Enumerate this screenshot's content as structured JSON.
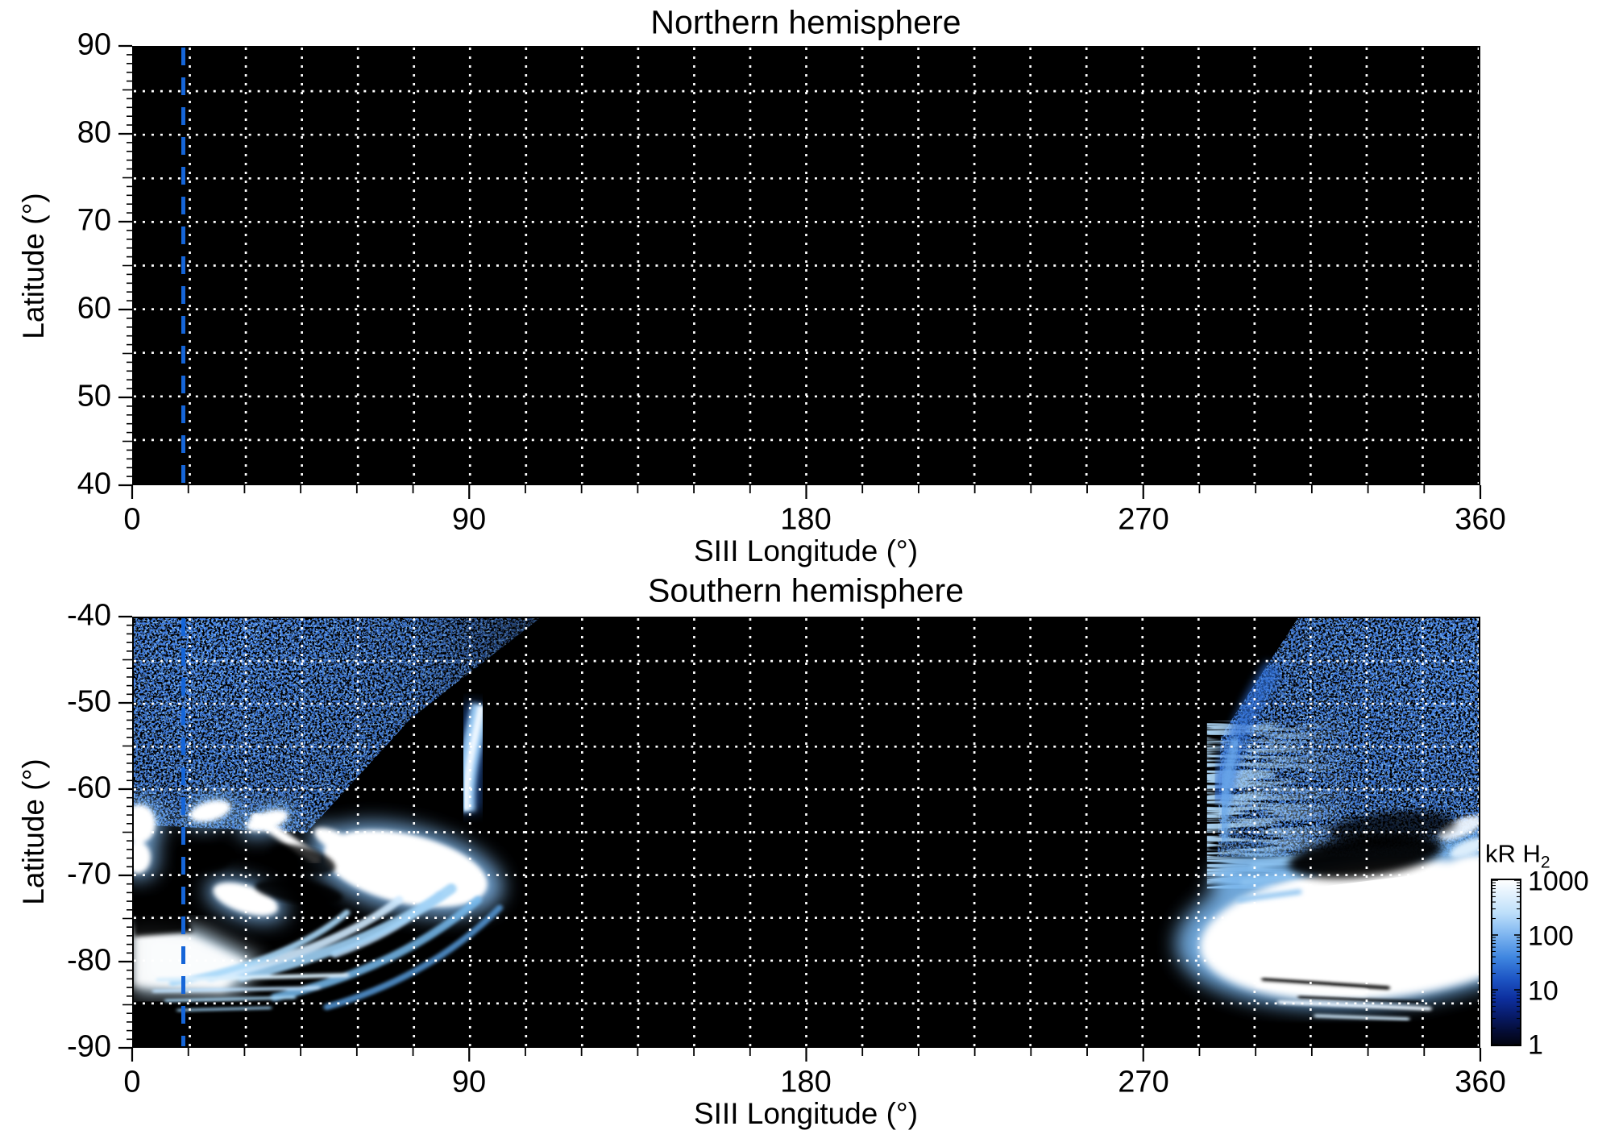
{
  "figure": {
    "north": {
      "title": "Northern hemisphere",
      "xlabel": "SIII Longitude (°)",
      "ylabel": "Latitude (°)",
      "xticks": [
        "0",
        "90",
        "180",
        "270",
        "360"
      ],
      "yticks": [
        "90",
        "80",
        "70",
        "60",
        "50",
        "40"
      ]
    },
    "south": {
      "title": "Southern hemisphere",
      "xlabel": "SIII Longitude (°)",
      "ylabel": "Latitude (°)",
      "xticks": [
        "0",
        "90",
        "180",
        "270",
        "360"
      ],
      "yticks": [
        "-40",
        "-50",
        "-60",
        "-70",
        "-80",
        "-90"
      ]
    },
    "colorbar": {
      "title_main": "kR H",
      "title_sub": "2",
      "ticks": [
        "1000",
        "100",
        "10",
        "1"
      ]
    }
  },
  "chart_data": [
    {
      "type": "heatmap",
      "title": "Northern hemisphere",
      "xlabel": "SIII Longitude (°)",
      "ylabel": "Latitude (°)",
      "xlim": [
        0,
        360
      ],
      "ylim": [
        40,
        90
      ],
      "xticks": [
        0,
        90,
        180,
        270,
        360
      ],
      "yticks": [
        40,
        50,
        60,
        70,
        80,
        90
      ],
      "grid": {
        "x_step_deg": 15,
        "y_step_deg": 5,
        "style": "white dotted"
      },
      "reference_line": {
        "orientation": "vertical",
        "longitude_deg": 13,
        "style": "blue dashed",
        "color": "#1565d8"
      },
      "content": "no emission detected - entire map at background level (black, < 1 kR)"
    },
    {
      "type": "heatmap",
      "title": "Southern hemisphere",
      "xlabel": "SIII Longitude (°)",
      "ylabel": "Latitude (°)",
      "xlim": [
        0,
        360
      ],
      "ylim": [
        -90,
        -40
      ],
      "xticks": [
        0,
        90,
        180,
        270,
        360
      ],
      "yticks": [
        -90,
        -80,
        -70,
        -60,
        -50,
        -40
      ],
      "grid": {
        "x_step_deg": 15,
        "y_step_deg": 5,
        "style": "white dotted"
      },
      "reference_line": {
        "orientation": "vertical",
        "longitude_deg": 13,
        "style": "blue dashed",
        "color": "#1565d8"
      },
      "features": [
        {
          "name": "faint speckled emission field",
          "lon_range": [
            0,
            105
          ],
          "lat_range": [
            -63,
            -40
          ],
          "intensity_kR": "1-30"
        },
        {
          "name": "faint speckled emission field",
          "lon_range": [
            288,
            360
          ],
          "lat_range": [
            -67,
            -40
          ],
          "intensity_kR": "1-30"
        },
        {
          "name": "bright arc segment",
          "lon_range": [
            86,
            96
          ],
          "lat_range": [
            -66,
            -50
          ],
          "intensity_kR": "100-600"
        },
        {
          "name": "bright auroral patches (main oval, dawn side)",
          "lon_range": [
            0,
            96
          ],
          "lat_range": [
            -76,
            -60
          ],
          "intensity_kR": "300-1000"
        },
        {
          "name": "bright fan with curved sweeping streaks",
          "lon_range": [
            0,
            100
          ],
          "lat_range": [
            -87,
            -74
          ],
          "intensity_kR": "100-1000"
        },
        {
          "name": "streaked emission band",
          "lon_range": [
            286,
            310
          ],
          "lat_range": [
            -71,
            -53
          ],
          "intensity_kR": "30-200"
        },
        {
          "name": "large bright emission region",
          "lon_range": [
            292,
            360
          ],
          "lat_range": [
            -85,
            -63
          ],
          "intensity_kR": "300-1000"
        },
        {
          "name": "no data / background",
          "lon_range": [
            105,
            286
          ],
          "lat_range": [
            -90,
            -40
          ],
          "intensity_kR": "<1"
        }
      ]
    }
  ],
  "colorbar_data": {
    "label": "kR H2",
    "scale": "log",
    "min": 1,
    "max": 1000,
    "ticks": [
      1,
      10,
      100,
      1000
    ],
    "colormap": "black -> dark blue -> blue -> white"
  }
}
